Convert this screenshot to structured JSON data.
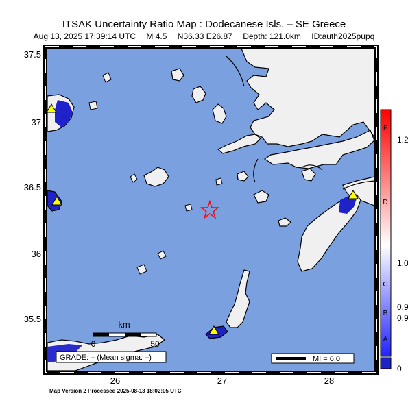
{
  "title": "ITSAK Uncertainty Ratio Map : Dodecanese Isls. – SE Greece",
  "subtitle": {
    "datetime": "Aug 13, 2025 17:39:14 UTC",
    "magnitude": "M 4.5",
    "location": "N36.33 E26.87",
    "depth": "Depth: 121.0km",
    "event_id": "ID:auth2025pupq"
  },
  "axes": {
    "lat_ticks": [
      "37.5",
      "37",
      "36.5",
      "36",
      "35.5"
    ],
    "lon_ticks": [
      "26",
      "27",
      "28"
    ]
  },
  "scale_bar": {
    "unit": "km",
    "left_label": "0",
    "right_label": "50"
  },
  "grade_label": "GRADE: – (Mean sigma: –)",
  "mi_legend": "MI = 6.0",
  "colorbar": {
    "letters": [
      "F",
      "D",
      "C",
      "B",
      "A"
    ],
    "values": [
      "1.2",
      "1.0",
      "0.9",
      "0.9",
      "0"
    ]
  },
  "footer": "Map Version 2 Processed 2025-08-13 18:02:05 UTC",
  "colors": {
    "sea": "#7aa0e0",
    "land": "#f0f0f0",
    "epicenter": "#ff0000",
    "station": "#ffff00",
    "high_uncert": "#1f22c8"
  }
}
